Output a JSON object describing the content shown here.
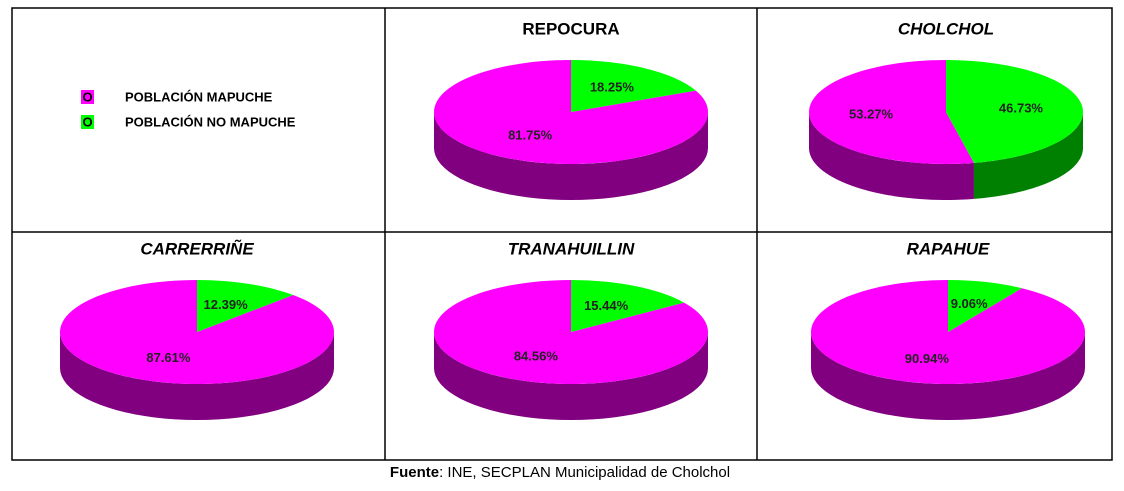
{
  "legend_marker": "O",
  "chart_data": [
    {
      "type": "pie",
      "title": "REPOCURA",
      "title_style": "normal",
      "categories": [
        "POBLACIÓN MAPUCHE",
        "POBLACIÓN NO MAPUCHE"
      ],
      "values": [
        81.75,
        18.25
      ],
      "value_labels": [
        "81.75%",
        "18.25%"
      ],
      "colors": [
        "#ff00ff",
        "#00ff00"
      ],
      "side_colors": [
        "#800080",
        "#008000"
      ]
    },
    {
      "type": "pie",
      "title": "CHOLCHOL",
      "title_style": "italic",
      "categories": [
        "POBLACIÓN MAPUCHE",
        "POBLACIÓN NO MAPUCHE"
      ],
      "values": [
        53.27,
        46.73
      ],
      "value_labels": [
        "53.27%",
        "46.73%"
      ],
      "colors": [
        "#ff00ff",
        "#00ff00"
      ],
      "side_colors": [
        "#800080",
        "#008000"
      ]
    },
    {
      "type": "pie",
      "title": "CARRERRIÑE",
      "title_style": "italic",
      "categories": [
        "POBLACIÓN MAPUCHE",
        "POBLACIÓN NO MAPUCHE"
      ],
      "values": [
        87.61,
        12.39
      ],
      "value_labels": [
        "87.61%",
        "12.39%"
      ],
      "colors": [
        "#ff00ff",
        "#00ff00"
      ],
      "side_colors": [
        "#800080",
        "#008000"
      ]
    },
    {
      "type": "pie",
      "title": "TRANAHUILLIN",
      "title_style": "italic",
      "categories": [
        "POBLACIÓN MAPUCHE",
        "POBLACIÓN NO MAPUCHE"
      ],
      "values": [
        84.56,
        15.44
      ],
      "value_labels": [
        "84.56%",
        "15.44%"
      ],
      "colors": [
        "#ff00ff",
        "#00ff00"
      ],
      "side_colors": [
        "#800080",
        "#008000"
      ]
    },
    {
      "type": "pie",
      "title": "RAPAHUE",
      "title_style": "italic",
      "categories": [
        "POBLACIÓN MAPUCHE",
        "POBLACIÓN NO MAPUCHE"
      ],
      "values": [
        90.94,
        9.06
      ],
      "value_labels": [
        "90.94%",
        "9.06%"
      ],
      "colors": [
        "#ff00ff",
        "#00ff00"
      ],
      "side_colors": [
        "#800080",
        "#008000"
      ]
    }
  ],
  "source": {
    "label": "Fuente",
    "text": ": INE, SECPLAN Municipalidad de Cholchol"
  }
}
